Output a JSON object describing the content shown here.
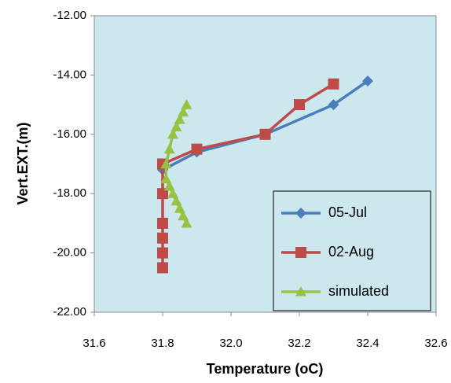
{
  "chart_data": {
    "type": "line",
    "x_label": "Temperature (oC)",
    "y_label": "Vert.EXT.(m)",
    "xlim": [
      31.6,
      32.6
    ],
    "ylim": [
      -22,
      -12
    ],
    "xticks": [
      31.6,
      31.8,
      {
        "value": 32.0,
        "label": "32.0"
      },
      32.2,
      32.4,
      32.6
    ],
    "yticks": [
      {
        "value": -22,
        "label": "-22.00"
      },
      {
        "value": -20,
        "label": "-20.00"
      },
      {
        "value": -18,
        "label": "-18.00"
      },
      {
        "value": -16,
        "label": "-16.00"
      },
      {
        "value": -14,
        "label": "-14.00"
      },
      {
        "value": -12,
        "label": "-12.00"
      }
    ],
    "grid": false,
    "background": "#cce8ee",
    "legend": "lower right",
    "series": [
      {
        "name": "05-Jul",
        "color": "#4a7ebb",
        "marker": "diamond",
        "x": [
          32.4,
          32.3,
          32.1,
          31.9,
          31.8
        ],
        "values": [
          -14.2,
          -15,
          -16,
          -16.6,
          -17.2
        ]
      },
      {
        "name": "02-Aug",
        "color": "#be4b48",
        "marker": "square",
        "x": [
          32.3,
          32.2,
          32.1,
          31.9,
          31.8,
          31.8,
          31.8,
          31.8,
          31.8,
          31.8
        ],
        "values": [
          -14.3,
          -15,
          -16,
          -16.5,
          -17,
          -18,
          -19,
          -19.5,
          -20,
          -20.5
        ]
      },
      {
        "name": "simulated",
        "color": "#98c146",
        "marker": "triangle",
        "x": [
          31.87,
          31.86,
          31.85,
          31.84,
          31.83,
          31.82,
          31.81,
          31.81,
          31.82,
          31.83,
          31.84,
          31.85,
          31.86,
          31.87
        ],
        "values": [
          -15,
          -15.25,
          -15.5,
          -15.75,
          -16,
          -16.5,
          -17,
          -17.5,
          -17.75,
          -18,
          -18.25,
          -18.5,
          -18.75,
          -19
        ]
      }
    ]
  }
}
